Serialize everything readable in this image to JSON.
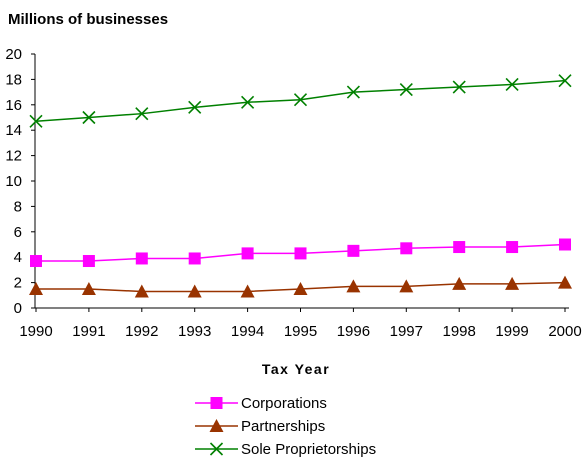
{
  "chart_data": {
    "type": "line",
    "ylabel": "Millions of businesses",
    "xlabel": "Tax Year",
    "categories": [
      "1990",
      "1991",
      "1992",
      "1993",
      "1994",
      "1995",
      "1996",
      "1997",
      "1998",
      "1999",
      "2000"
    ],
    "ylim": [
      0,
      20
    ],
    "yticks": [
      "0",
      "2",
      "4",
      "6",
      "8",
      "10",
      "12",
      "14",
      "16",
      "18",
      "20"
    ],
    "grid": false,
    "legend_position": "bottom",
    "series": [
      {
        "name": "Corporations",
        "color": "#FF00FF",
        "marker": "square",
        "values": [
          3.7,
          3.7,
          3.9,
          3.9,
          4.3,
          4.3,
          4.5,
          4.7,
          4.8,
          4.8,
          5.0
        ]
      },
      {
        "name": "Partnerships",
        "color": "#993300",
        "marker": "triangle",
        "values": [
          1.5,
          1.5,
          1.3,
          1.3,
          1.3,
          1.5,
          1.7,
          1.7,
          1.9,
          1.9,
          2.0
        ]
      },
      {
        "name": "Sole Proprietorships",
        "color": "#008000",
        "marker": "x",
        "values": [
          14.7,
          15.0,
          15.3,
          15.8,
          16.2,
          16.4,
          17.0,
          17.2,
          17.4,
          17.6,
          17.9
        ]
      }
    ]
  }
}
